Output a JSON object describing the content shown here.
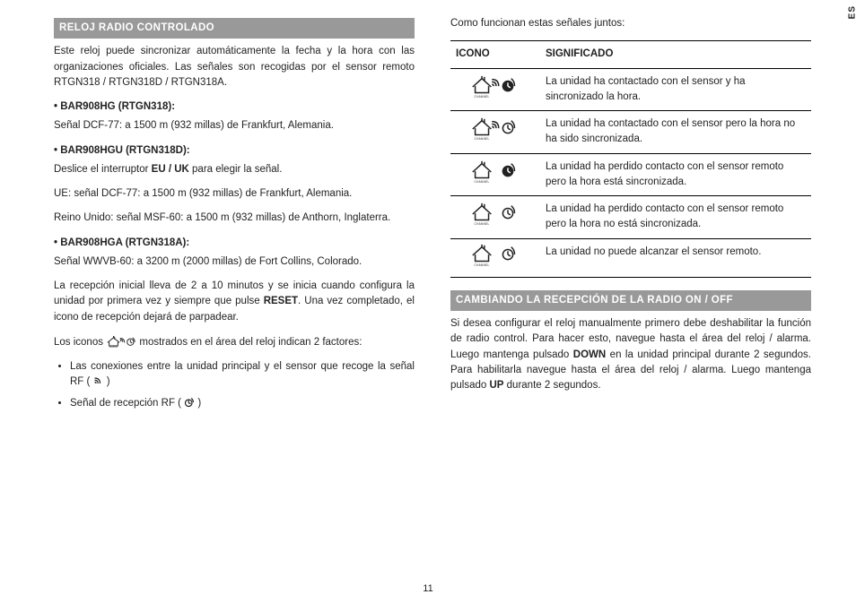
{
  "language_tab": "ES",
  "page_number": "11",
  "left": {
    "heading": "RELOJ RADIO CONTROLADO",
    "intro": "Este reloj puede sincronizar automáticamente la fecha y la hora con las organizaciones oficiales. Las señales son recogidas por el sensor remoto RTGN318 / RTGN318D / RTGN318A.",
    "model1_label": "• BAR908HG (RTGN318):",
    "model1_text": "Señal DCF-77: a 1500 m (932 millas) de Frankfurt, Alemania.",
    "model2_label": "• BAR908HGU (RTGN318D):",
    "model2_text1": "Deslice el interruptor ",
    "model2_text1b": "EU / UK",
    "model2_text1c": " para elegir la señal.",
    "model2_text2": "UE: señal DCF-77: a 1500 m (932 millas) de Frankfurt, Alemania.",
    "model2_text3": "Reino Unido: señal MSF-60: a 1500 m (932 millas) de Anthorn, Inglaterra.",
    "model3_label": "• BAR908HGA (RTGN318A):",
    "model3_text": "Señal WWVB-60: a 3200 m (2000 millas) de Fort Collins, Colorado.",
    "reception_text_a": "La recepción inicial lleva de 2 a 10 minutos y se inicia cuando configura la unidad por primera vez y siempre que pulse ",
    "reception_text_b": "RESET",
    "reception_text_c": ". Una vez completado, el icono de recepción dejará de parpadear.",
    "icons_intro_a": "Los iconos ",
    "icons_intro_b": " mostrados en el área del reloj indican 2 factores:",
    "bullet1_a": "Las conexiones entre la unidad principal y el sensor que recoge la señal RF ( ",
    "bullet1_b": " )",
    "bullet2_a": "Señal de recepción RF ( ",
    "bullet2_b": " )"
  },
  "right": {
    "intro": "Como funcionan estas señales juntos:",
    "table_header_icon": "ICONO",
    "table_header_meaning": "SIGNIFICADO",
    "row1": "La unidad ha contactado con el sensor y ha sincronizado la hora.",
    "row2": "La unidad ha contactado con el sensor pero la hora no ha sido sincronizada.",
    "row3": "La unidad ha perdido contacto con el sensor remoto pero la hora está sincronizada.",
    "row4": "La unidad ha perdido contacto con el sensor remoto pero la hora no está sincronizada.",
    "row5": "La unidad no puede alcanzar el sensor remoto.",
    "heading2": "CAMBIANDO LA RECEPCIÓN DE LA RADIO ON / OFF",
    "p2_a": "Si desea configurar el reloj manualmente primero debe deshabilitar la función de radio control. Para hacer esto, navegue hasta el área del reloj / alarma. Luego mantenga pulsado ",
    "p2_b": "DOWN",
    "p2_c": " en la unidad principal durante 2 segundos. Para habilitarla navegue hasta el área del reloj / alarma. Luego mantenga pulsado ",
    "p2_d": "UP",
    "p2_e": " durante  2 segundos.",
    "icon_states": [
      {
        "waves": true,
        "filled": true
      },
      {
        "waves": true,
        "filled": false
      },
      {
        "waves": false,
        "filled": true
      },
      {
        "waves": false,
        "filled": false
      },
      {
        "waves": false,
        "filled": false,
        "dim": true
      }
    ],
    "channel_label": "CHANNEL"
  }
}
